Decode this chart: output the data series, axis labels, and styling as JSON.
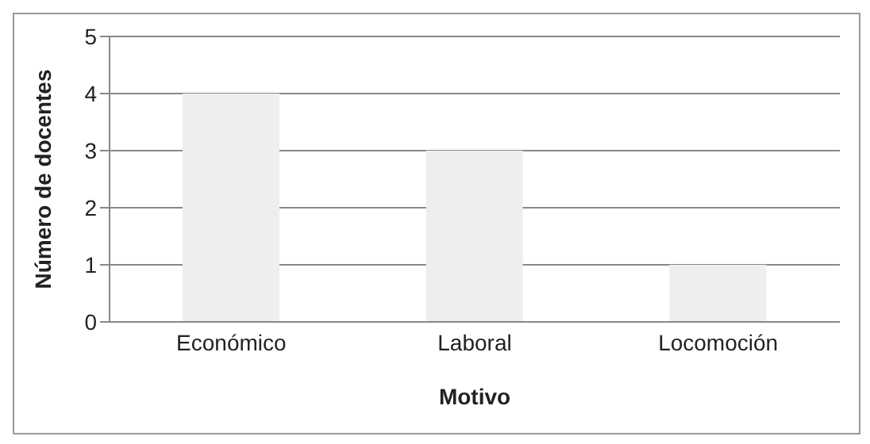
{
  "chart_data": {
    "type": "bar",
    "xlabel": "Motivo",
    "ylabel": "Número de docentes",
    "categories": [
      "Económico",
      "Laboral",
      "Locomoción"
    ],
    "values": [
      4,
      3,
      1
    ],
    "color": "#eeeeee",
    "ylim": [
      0,
      5
    ],
    "yticks": [
      0,
      1,
      2,
      3,
      4,
      5
    ],
    "grid": "y"
  }
}
